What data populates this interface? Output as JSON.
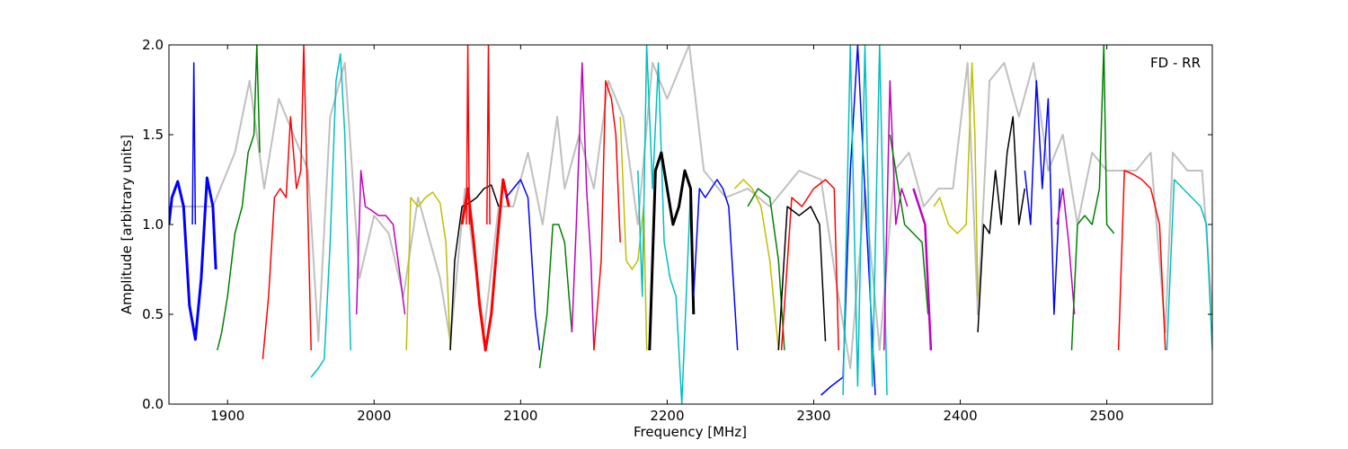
{
  "chart_data": {
    "type": "line",
    "title": "",
    "annotation": "FD - RR",
    "xlabel": "Frequency [MHz]",
    "ylabel": "Amplitude [arbitrary units]",
    "xlim": [
      1860,
      2572
    ],
    "ylim": [
      0.0,
      2.0
    ],
    "x_ticks": [
      1900,
      2000,
      2100,
      2200,
      2300,
      2400,
      2500
    ],
    "x_tick_labels": [
      "1900",
      "2000",
      "2100",
      "2200",
      "2300",
      "2400",
      "2500"
    ],
    "y_ticks": [
      0.0,
      0.5,
      1.0,
      1.5,
      2.0
    ],
    "y_tick_labels": [
      "0.0",
      "0.5",
      "1.0",
      "1.5",
      "2.0"
    ],
    "grid": false,
    "legend": "none",
    "series": [
      {
        "color": "#c0c0c0",
        "width": 2,
        "x": [
          1860,
          1890,
          1905,
          1915,
          1925,
          1935,
          1945,
          1955,
          1962,
          1970,
          1980,
          1990,
          2000,
          2010,
          2020,
          2030,
          2045,
          2052,
          2062,
          2075,
          2085,
          2095,
          2105,
          2115,
          2120,
          2125,
          2130,
          2140,
          2150,
          2160,
          2170,
          2180,
          2190,
          2200,
          2210,
          2215,
          2225,
          2240,
          2255,
          2270,
          2290,
          2305,
          2315,
          2325,
          2335,
          2345,
          2355,
          2365,
          2375,
          2385,
          2395,
          2405,
          2412,
          2420,
          2430,
          2440,
          2450,
          2460,
          2470,
          2480,
          2490,
          2500,
          2510,
          2520,
          2530,
          2540,
          2545,
          2555,
          2565,
          2572
        ],
        "y": [
          1.1,
          1.1,
          1.4,
          1.8,
          1.2,
          1.7,
          1.5,
          1.3,
          0.35,
          1.6,
          1.9,
          0.7,
          1.05,
          0.95,
          0.6,
          1.15,
          0.7,
          0.35,
          1.2,
          0.4,
          1.1,
          1.1,
          1.4,
          1.0,
          1.3,
          1.6,
          1.2,
          1.5,
          1.2,
          1.8,
          1.6,
          1.0,
          1.9,
          1.7,
          1.9,
          2.0,
          1.3,
          1.15,
          1.2,
          1.1,
          1.3,
          1.25,
          0.7,
          0.2,
          1.2,
          0.3,
          1.3,
          1.4,
          1.1,
          1.2,
          1.2,
          1.9,
          0.5,
          1.8,
          1.9,
          1.6,
          1.9,
          1.3,
          1.5,
          1.0,
          1.4,
          1.3,
          1.3,
          1.3,
          1.4,
          0.4,
          1.4,
          1.3,
          1.3,
          0.5
        ]
      },
      {
        "color": "#0000ff",
        "width": 3,
        "x": [
          1860,
          1862,
          1866,
          1870,
          1874,
          1878,
          1882,
          1886,
          1890,
          1892
        ],
        "y": [
          1.0,
          1.15,
          1.24,
          1.1,
          0.55,
          0.36,
          0.7,
          1.26,
          1.1,
          0.75
        ]
      },
      {
        "color": "#0000ff",
        "width": 1.5,
        "x": [
          1876,
          1877,
          1878
        ],
        "y": [
          1.0,
          1.9,
          1.0
        ]
      },
      {
        "color": "#008000",
        "width": 1.5,
        "x": [
          1893,
          1896,
          1900,
          1905,
          1910,
          1914,
          1918,
          1920,
          1922
        ],
        "y": [
          0.3,
          0.4,
          0.6,
          0.95,
          1.1,
          1.4,
          1.5,
          2.0,
          1.4
        ]
      },
      {
        "color": "#ff0000",
        "width": 1.5,
        "x": [
          1924,
          1928,
          1932,
          1936,
          1940,
          1943,
          1947,
          1950,
          1952,
          1955,
          1957
        ],
        "y": [
          0.25,
          0.6,
          1.15,
          1.2,
          1.15,
          1.6,
          1.2,
          1.3,
          2.0,
          1.0,
          0.3
        ]
      },
      {
        "color": "#00bfbf",
        "width": 1.5,
        "x": [
          1957,
          1962,
          1966,
          1970,
          1974,
          1977,
          1980,
          1984
        ],
        "y": [
          0.15,
          0.2,
          0.25,
          0.9,
          1.8,
          1.95,
          1.5,
          0.3
        ]
      },
      {
        "color": "#bf00bf",
        "width": 1.5,
        "x": [
          1988,
          1991,
          1994,
          1998,
          2003,
          2008,
          2013,
          2018,
          2021
        ],
        "y": [
          0.5,
          1.3,
          1.1,
          1.08,
          1.05,
          1.05,
          1.0,
          0.7,
          0.5
        ]
      },
      {
        "color": "#bfbf00",
        "width": 1.5,
        "x": [
          2022,
          2025,
          2030,
          2035,
          2040,
          2045,
          2049,
          2052
        ],
        "y": [
          0.3,
          1.15,
          1.1,
          1.15,
          1.18,
          1.12,
          0.9,
          0.3
        ]
      },
      {
        "color": "#000000",
        "width": 1.5,
        "x": [
          2052,
          2055,
          2060,
          2065,
          2070,
          2075,
          2080,
          2085
        ],
        "y": [
          0.3,
          0.8,
          1.1,
          1.12,
          1.15,
          1.2,
          1.22,
          1.1
        ]
      },
      {
        "color": "#ff0000",
        "width": 3,
        "x": [
          2060,
          2064,
          2068,
          2072,
          2076,
          2080,
          2084,
          2088,
          2092
        ],
        "y": [
          1.0,
          1.2,
          0.9,
          0.55,
          0.3,
          0.5,
          0.9,
          1.25,
          1.1
        ]
      },
      {
        "color": "#ff0000",
        "width": 1.5,
        "x": [
          2063,
          2064,
          2065
        ],
        "y": [
          1.0,
          2.0,
          1.0
        ]
      },
      {
        "color": "#ff0000",
        "width": 1.5,
        "x": [
          2077,
          2078,
          2079
        ],
        "y": [
          1.0,
          2.0,
          1.0
        ]
      },
      {
        "color": "#0000ff",
        "width": 1.5,
        "x": [
          2090,
          2095,
          2100,
          2105,
          2110,
          2113
        ],
        "y": [
          1.15,
          1.2,
          1.25,
          1.15,
          0.5,
          0.3
        ]
      },
      {
        "color": "#008000",
        "width": 1.5,
        "x": [
          2113,
          2118,
          2122,
          2126,
          2130,
          2135
        ],
        "y": [
          0.2,
          0.5,
          1.0,
          1.0,
          0.9,
          0.4
        ]
      },
      {
        "color": "#bf00bf",
        "width": 1.5,
        "x": [
          2135,
          2138,
          2142,
          2145,
          2148,
          2150
        ],
        "y": [
          0.4,
          1.0,
          1.9,
          1.2,
          0.8,
          0.3
        ]
      },
      {
        "color": "#ff0000",
        "width": 1.5,
        "x": [
          2150,
          2155,
          2158,
          2162,
          2165,
          2168
        ],
        "y": [
          0.3,
          0.8,
          1.8,
          1.7,
          1.5,
          0.9
        ]
      },
      {
        "color": "#bfbf00",
        "width": 1.5,
        "x": [
          2168,
          2172,
          2176,
          2180,
          2184,
          2186
        ],
        "y": [
          1.6,
          0.8,
          0.75,
          0.8,
          1.1,
          0.3
        ]
      },
      {
        "color": "#00bfbf",
        "width": 1.5,
        "x": [
          2180,
          2183,
          2186,
          2190,
          2194,
          2198,
          2202,
          2206,
          2210,
          2213,
          2216
        ],
        "y": [
          1.3,
          0.6,
          2.0,
          1.2,
          1.9,
          0.9,
          0.7,
          0.6,
          0.0,
          0.6,
          1.2
        ]
      },
      {
        "color": "#000000",
        "width": 3,
        "x": [
          2188,
          2192,
          2196,
          2200,
          2204,
          2208,
          2212,
          2216,
          2218
        ],
        "y": [
          0.3,
          1.3,
          1.4,
          1.2,
          1.0,
          1.1,
          1.3,
          1.2,
          0.5
        ]
      },
      {
        "color": "#0000ff",
        "width": 1.5,
        "x": [
          2218,
          2222,
          2226,
          2230,
          2234,
          2238,
          2242,
          2248
        ],
        "y": [
          0.6,
          1.2,
          1.15,
          1.2,
          1.25,
          1.2,
          1.1,
          0.3
        ]
      },
      {
        "color": "#bfbf00",
        "width": 1.5,
        "x": [
          2246,
          2252,
          2258,
          2264,
          2270,
          2276
        ],
        "y": [
          1.2,
          1.25,
          1.2,
          1.1,
          0.8,
          0.3
        ]
      },
      {
        "color": "#008000",
        "width": 1.5,
        "x": [
          2255,
          2262,
          2270,
          2276,
          2280
        ],
        "y": [
          1.1,
          1.2,
          1.15,
          0.8,
          0.3
        ]
      },
      {
        "color": "#ff0000",
        "width": 1.5,
        "x": [
          2278,
          2285,
          2292,
          2300,
          2308,
          2314,
          2317
        ],
        "y": [
          0.3,
          1.15,
          1.1,
          1.2,
          1.25,
          1.2,
          0.3
        ]
      },
      {
        "color": "#000000",
        "width": 1.5,
        "x": [
          2276,
          2282,
          2290,
          2298,
          2304,
          2308
        ],
        "y": [
          0.3,
          1.1,
          1.05,
          1.1,
          1.0,
          0.35
        ]
      },
      {
        "color": "#0000ff",
        "width": 1.5,
        "x": [
          2305,
          2312,
          2320,
          2325,
          2330,
          2336,
          2342
        ],
        "y": [
          0.05,
          0.1,
          0.15,
          1.3,
          2.0,
          1.0,
          0.05
        ]
      },
      {
        "color": "#00bfbf",
        "width": 1.5,
        "x": [
          2320,
          2325,
          2330,
          2335,
          2340,
          2345,
          2350
        ],
        "y": [
          0.05,
          2.0,
          0.1,
          2.0,
          0.1,
          2.0,
          0.05
        ]
      },
      {
        "color": "#bf00bf",
        "width": 1.5,
        "x": [
          2348,
          2352,
          2356,
          2360,
          2364
        ],
        "y": [
          0.3,
          1.8,
          1.0,
          1.2,
          1.1
        ]
      },
      {
        "color": "#008000",
        "width": 1.5,
        "x": [
          2352,
          2358,
          2362,
          2368,
          2374,
          2378
        ],
        "y": [
          1.5,
          1.2,
          1.0,
          0.95,
          0.9,
          0.5
        ]
      },
      {
        "color": "#bf00bf",
        "width": 2.5,
        "x": [
          2368,
          2372,
          2376,
          2380
        ],
        "y": [
          1.2,
          1.1,
          1.0,
          0.3
        ]
      },
      {
        "color": "#bfbf00",
        "width": 1.5,
        "x": [
          2382,
          2386,
          2392,
          2398,
          2404,
          2408,
          2410,
          2412
        ],
        "y": [
          1.1,
          1.15,
          1.0,
          0.95,
          1.0,
          1.9,
          1.5,
          0.6
        ]
      },
      {
        "color": "#000000",
        "width": 1.5,
        "x": [
          2412,
          2416,
          2420,
          2424,
          2428,
          2432,
          2436,
          2440,
          2444
        ],
        "y": [
          0.4,
          1.0,
          0.95,
          1.3,
          1.0,
          1.4,
          1.6,
          1.0,
          1.2
        ]
      },
      {
        "color": "#0000ff",
        "width": 1.5,
        "x": [
          2444,
          2448,
          2452,
          2456,
          2460,
          2464,
          2468
        ],
        "y": [
          1.3,
          1.0,
          1.8,
          1.2,
          1.7,
          0.5,
          1.2
        ]
      },
      {
        "color": "#bf00bf",
        "width": 1.5,
        "x": [
          2466,
          2470,
          2474,
          2478
        ],
        "y": [
          1.0,
          1.2,
          0.9,
          0.5
        ]
      },
      {
        "color": "#008000",
        "width": 1.5,
        "x": [
          2476,
          2480,
          2485,
          2490,
          2495,
          2498,
          2500,
          2505
        ],
        "y": [
          0.3,
          1.0,
          1.05,
          1.0,
          1.2,
          2.0,
          1.0,
          0.95
        ]
      },
      {
        "color": "#ff0000",
        "width": 1.5,
        "x": [
          2508,
          2512,
          2518,
          2524,
          2530,
          2536,
          2540
        ],
        "y": [
          0.3,
          1.3,
          1.28,
          1.25,
          1.2,
          1.0,
          0.3
        ]
      },
      {
        "color": "#00bfbf",
        "width": 1.5,
        "x": [
          2541,
          2546,
          2552,
          2558,
          2564,
          2568,
          2572
        ],
        "y": [
          0.3,
          1.25,
          1.2,
          1.15,
          1.1,
          1.0,
          0.3
        ]
      }
    ]
  }
}
